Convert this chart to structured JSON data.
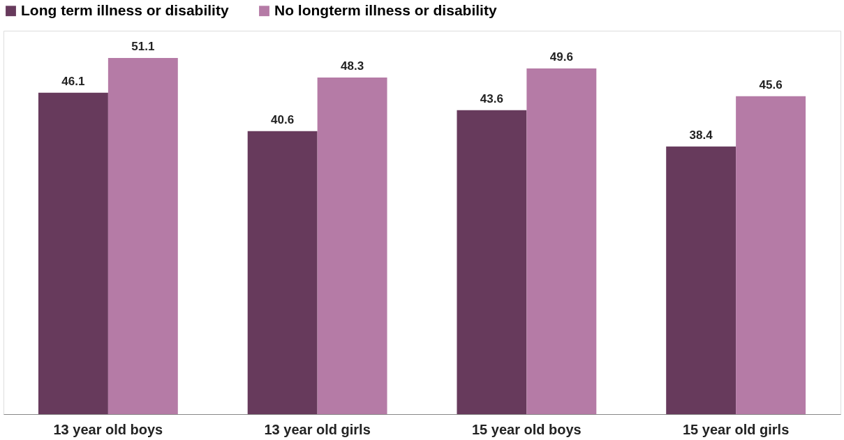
{
  "chart_data": {
    "type": "bar",
    "categories": [
      "13 year old boys",
      "13 year old girls",
      "15 year old boys",
      "15 year old girls"
    ],
    "series": [
      {
        "name": "Long term illness or disability",
        "color": "#673a5c",
        "values": [
          46.1,
          40.6,
          43.6,
          38.4
        ]
      },
      {
        "name": "No longterm illness or disability",
        "color": "#b57ba6",
        "values": [
          51.1,
          48.3,
          49.6,
          45.6
        ]
      }
    ],
    "data_labels": true,
    "legend": "top",
    "grid": false
  }
}
